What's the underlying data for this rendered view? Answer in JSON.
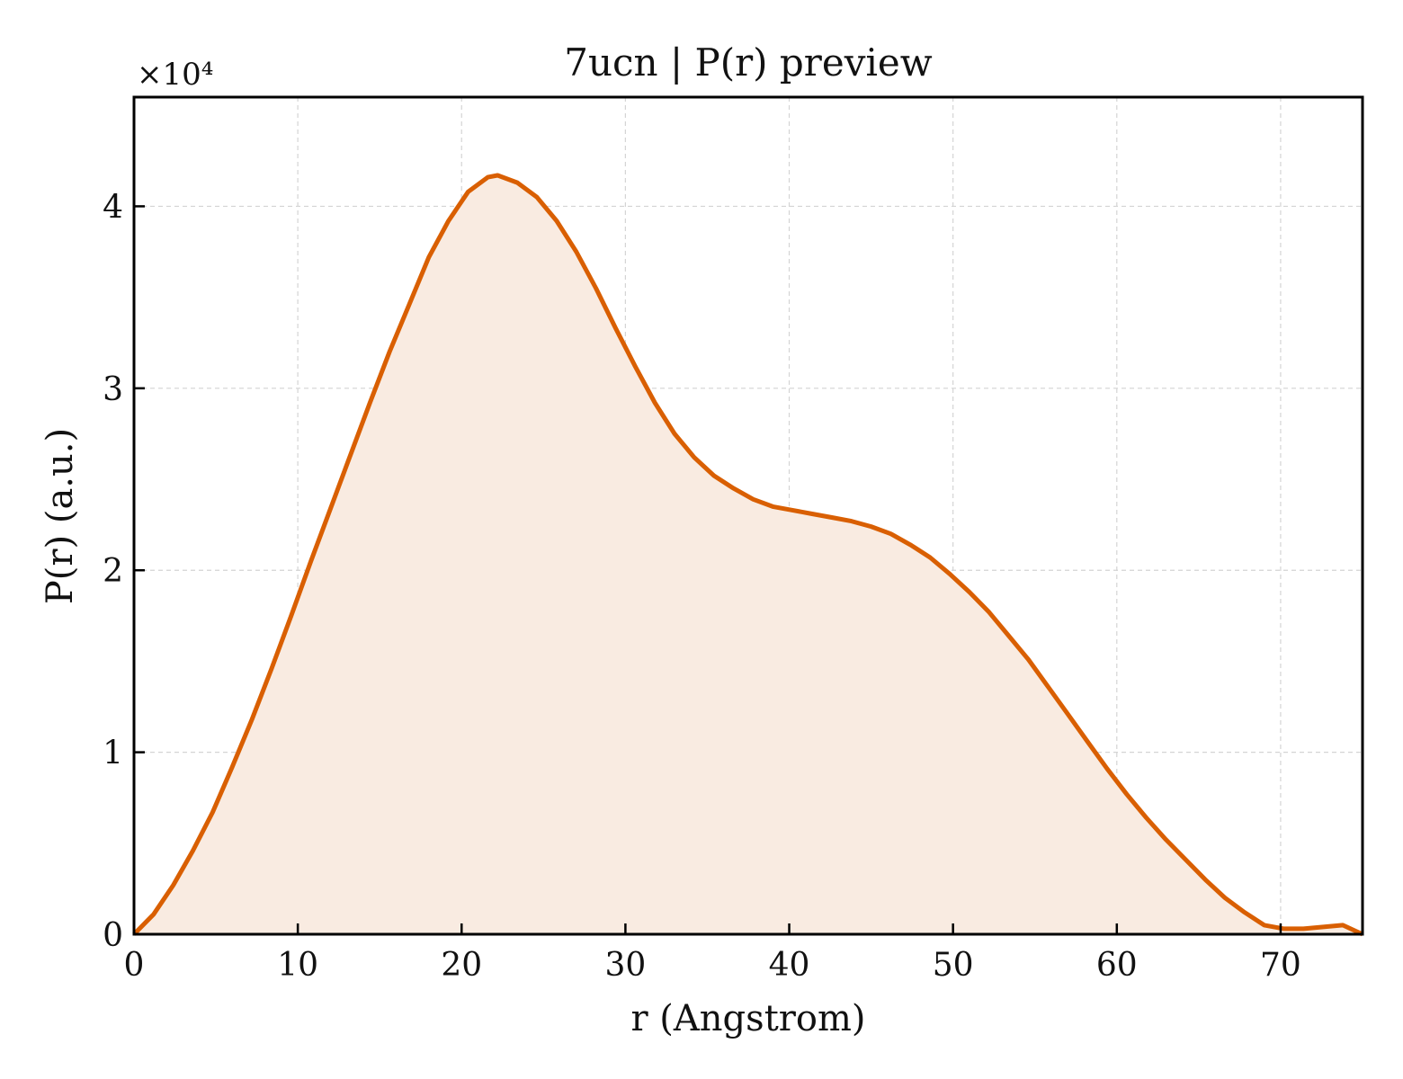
{
  "chart_data": {
    "type": "area",
    "title": "7ucn | P(r) preview",
    "xlabel": "r (Angstrom)",
    "ylabel": "P(r) (a.u.)",
    "y_multiplier_label": "×10⁴",
    "xlim": [
      0,
      75
    ],
    "ylim": [
      0,
      4.6
    ],
    "x_ticks": [
      0,
      10,
      20,
      30,
      40,
      50,
      60,
      70
    ],
    "y_ticks": [
      0,
      1,
      2,
      3,
      4
    ],
    "grid": true,
    "line_color": "#d95f02",
    "fill_color": "#f9ebe1",
    "x": [
      0,
      1.2,
      2.4,
      3.6,
      4.8,
      6.0,
      7.2,
      8.4,
      9.6,
      10.8,
      12.0,
      13.2,
      14.4,
      15.6,
      16.8,
      18.0,
      19.2,
      20.4,
      21.6,
      22.2,
      23.4,
      24.6,
      25.8,
      27.0,
      28.2,
      29.4,
      30.6,
      31.8,
      33.0,
      34.2,
      35.4,
      36.6,
      37.8,
      39.0,
      40.2,
      41.4,
      42.6,
      43.8,
      45.0,
      46.2,
      47.4,
      48.6,
      49.8,
      51.0,
      52.2,
      53.4,
      54.6,
      55.8,
      57.0,
      58.2,
      59.4,
      60.6,
      61.8,
      63.0,
      64.2,
      65.4,
      66.6,
      67.8,
      69.0,
      70.2,
      71.4,
      72.6,
      73.8,
      75.0
    ],
    "series": [
      {
        "values": [
          0.0,
          0.11,
          0.27,
          0.46,
          0.67,
          0.92,
          1.18,
          1.46,
          1.75,
          2.05,
          2.34,
          2.63,
          2.92,
          3.2,
          3.46,
          3.72,
          3.92,
          4.08,
          4.16,
          4.17,
          4.13,
          4.05,
          3.92,
          3.75,
          3.55,
          3.33,
          3.12,
          2.92,
          2.75,
          2.62,
          2.52,
          2.45,
          2.39,
          2.35,
          2.33,
          2.31,
          2.29,
          2.27,
          2.24,
          2.2,
          2.14,
          2.07,
          1.98,
          1.88,
          1.77,
          1.64,
          1.51,
          1.36,
          1.21,
          1.06,
          0.91,
          0.77,
          0.64,
          0.52,
          0.41,
          0.3,
          0.2,
          0.12,
          0.05,
          0.03,
          0.03,
          0.04,
          0.05,
          0.0
        ]
      }
    ]
  }
}
